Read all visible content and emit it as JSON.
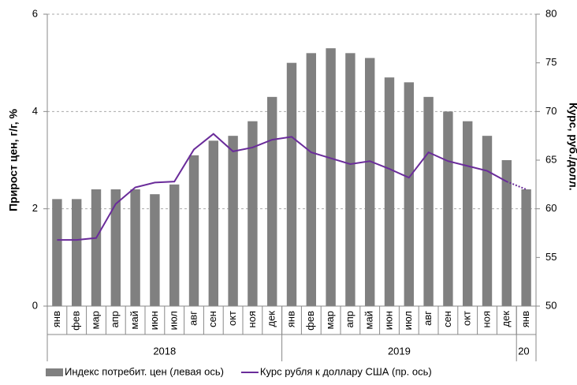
{
  "chart_data": {
    "type": "bar_line",
    "category_groups": [
      {
        "label": "2018",
        "categories": [
          "янв",
          "фев",
          "мар",
          "апр",
          "май",
          "июн",
          "июл",
          "авг",
          "сен",
          "окт",
          "ноя",
          "дек"
        ]
      },
      {
        "label": "2019",
        "categories": [
          "янв",
          "фев",
          "мар",
          "апр",
          "май",
          "июн",
          "июл",
          "авг",
          "сен",
          "окт",
          "ноя",
          "дек"
        ]
      },
      {
        "label": "20",
        "categories": [
          "янв"
        ]
      }
    ],
    "series": [
      {
        "name": "Индекс потребит. цен (левая ось)",
        "type": "bar",
        "color": "#808080",
        "axis": "y",
        "values": [
          2.2,
          2.2,
          2.4,
          2.4,
          2.4,
          2.3,
          2.5,
          3.1,
          3.4,
          3.5,
          3.8,
          4.3,
          5.0,
          5.2,
          5.3,
          5.2,
          5.1,
          4.7,
          4.6,
          4.3,
          4.0,
          3.8,
          3.5,
          3.0,
          2.4
        ]
      },
      {
        "name": "Курс рубля к доллару США (пр. ось)",
        "type": "line",
        "color": "#6a2c9a",
        "axis": "y2",
        "dotted_last_segment": true,
        "values": [
          56.8,
          56.8,
          57.0,
          60.5,
          62.2,
          62.7,
          62.8,
          66.1,
          67.7,
          65.9,
          66.3,
          67.1,
          67.4,
          65.8,
          65.2,
          64.6,
          64.9,
          64.1,
          63.2,
          65.8,
          64.9,
          64.4,
          63.9,
          62.8,
          62.0
        ]
      }
    ],
    "y_label": "Прирост цен, г/г, %",
    "y2_label": "Курс, руб./долл.",
    "ylim": [
      0,
      6
    ],
    "yticks": [
      0,
      2,
      4,
      6
    ],
    "y2lim": [
      50,
      80
    ],
    "y2ticks": [
      50,
      55,
      60,
      65,
      70,
      75,
      80
    ],
    "grid": true,
    "legend": "bottom"
  }
}
